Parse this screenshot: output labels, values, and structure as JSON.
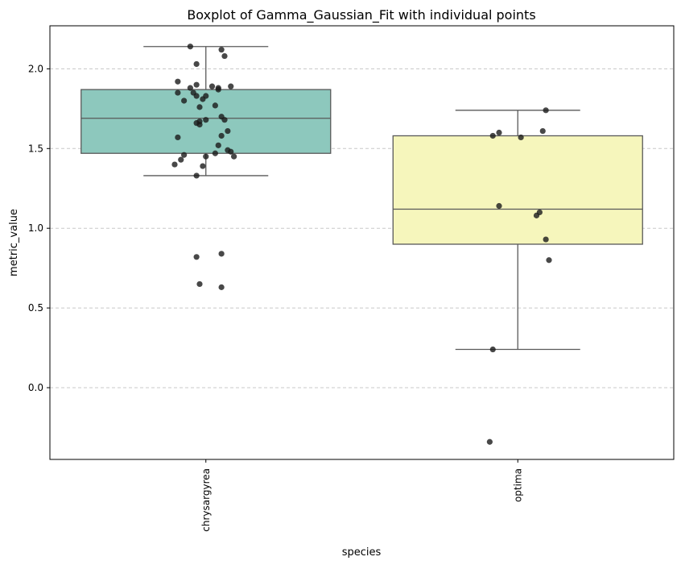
{
  "chart_data": {
    "type": "box",
    "title": "Boxplot of Gamma_Gaussian_Fit with individual points",
    "xlabel": "species",
    "ylabel": "metric_value",
    "ylim": [
      -0.45,
      2.27
    ],
    "yticks": [
      0.0,
      0.5,
      1.0,
      1.5,
      2.0
    ],
    "ytick_labels": [
      "0.0",
      "0.5",
      "1.0",
      "1.5",
      "2.0"
    ],
    "grid": "y-dashed",
    "categories": [
      "chrysargyrea",
      "optima"
    ],
    "boxes": [
      {
        "category": "chrysargyrea",
        "color": "#8dc8bd",
        "whisker_low": 1.33,
        "q1": 1.47,
        "median": 1.69,
        "q3": 1.87,
        "whisker_high": 2.14,
        "points": [
          [
            -0.05,
            2.14
          ],
          [
            0.05,
            2.12
          ],
          [
            -0.03,
            2.03
          ],
          [
            0.06,
            2.08
          ],
          [
            -0.09,
            1.92
          ],
          [
            -0.05,
            1.88
          ],
          [
            -0.03,
            1.9
          ],
          [
            0.02,
            1.89
          ],
          [
            0.04,
            1.88
          ],
          [
            0.08,
            1.89
          ],
          [
            0.04,
            1.87
          ],
          [
            -0.09,
            1.85
          ],
          [
            -0.04,
            1.85
          ],
          [
            -0.03,
            1.83
          ],
          [
            0.0,
            1.83
          ],
          [
            -0.07,
            1.8
          ],
          [
            -0.01,
            1.81
          ],
          [
            -0.02,
            1.76
          ],
          [
            0.03,
            1.77
          ],
          [
            0.05,
            1.7
          ],
          [
            0.06,
            1.68
          ],
          [
            -0.03,
            1.66
          ],
          [
            -0.02,
            1.67
          ],
          [
            0.0,
            1.68
          ],
          [
            -0.02,
            1.65
          ],
          [
            0.07,
            1.61
          ],
          [
            0.05,
            1.58
          ],
          [
            -0.09,
            1.57
          ],
          [
            0.04,
            1.52
          ],
          [
            0.07,
            1.49
          ],
          [
            0.08,
            1.48
          ],
          [
            0.09,
            1.45
          ],
          [
            0.03,
            1.47
          ],
          [
            -0.07,
            1.46
          ],
          [
            0.0,
            1.45
          ],
          [
            -0.08,
            1.43
          ],
          [
            -0.1,
            1.4
          ],
          [
            -0.01,
            1.39
          ],
          [
            -0.03,
            1.33
          ],
          [
            -0.03,
            0.82
          ],
          [
            0.05,
            0.84
          ],
          [
            -0.02,
            0.65
          ],
          [
            0.05,
            0.63
          ]
        ]
      },
      {
        "category": "optima",
        "color": "#f6f6bc",
        "whisker_low": 0.24,
        "q1": 0.9,
        "median": 1.12,
        "q3": 1.58,
        "whisker_high": 1.74,
        "points": [
          [
            0.09,
            1.74
          ],
          [
            -0.06,
            1.6
          ],
          [
            -0.08,
            1.58
          ],
          [
            0.01,
            1.57
          ],
          [
            0.08,
            1.61
          ],
          [
            -0.06,
            1.14
          ],
          [
            0.06,
            1.08
          ],
          [
            0.07,
            1.1
          ],
          [
            0.09,
            0.93
          ],
          [
            0.1,
            0.8
          ],
          [
            -0.08,
            0.24
          ],
          [
            -0.09,
            -0.34
          ]
        ]
      }
    ]
  }
}
